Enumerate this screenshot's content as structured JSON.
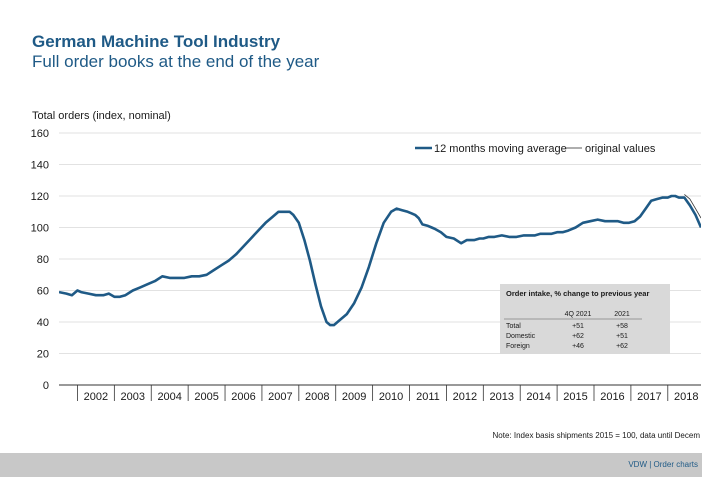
{
  "header": {
    "title": "German Machine Tool Industry",
    "subtitle": "Full order books at the end of the year"
  },
  "chart_data": {
    "type": "line",
    "ylabel": "Total orders (index, nominal)",
    "ylim": [
      0,
      160
    ],
    "yticks": [
      0,
      20,
      40,
      60,
      80,
      100,
      120,
      140,
      160
    ],
    "xlim": [
      2001.5,
      2018.9
    ],
    "xtick_labels": [
      "2002",
      "2003",
      "2004",
      "2005",
      "2006",
      "2007",
      "2008",
      "2009",
      "2010",
      "2011",
      "2012",
      "2013",
      "2014",
      "2015",
      "2016",
      "2017",
      "2018"
    ],
    "grid": true,
    "legend_position": "top-right",
    "series": [
      {
        "name": "12 months moving average",
        "color": "#1f5a86",
        "x": [
          2001.5,
          2001.7,
          2001.85,
          2002.0,
          2002.1,
          2002.3,
          2002.5,
          2002.7,
          2002.85,
          2003.0,
          2003.15,
          2003.3,
          2003.5,
          2003.7,
          2003.9,
          2004.1,
          2004.3,
          2004.5,
          2004.7,
          2004.9,
          2005.1,
          2005.3,
          2005.5,
          2005.7,
          2005.9,
          2006.1,
          2006.3,
          2006.5,
          2006.7,
          2006.9,
          2007.1,
          2007.3,
          2007.45,
          2007.6,
          2007.75,
          2007.85,
          2008.0,
          2008.15,
          2008.3,
          2008.45,
          2008.6,
          2008.75,
          2008.85,
          2008.95,
          2009.1,
          2009.3,
          2009.5,
          2009.7,
          2009.9,
          2010.1,
          2010.3,
          2010.5,
          2010.65,
          2010.8,
          2010.95,
          2011.05,
          2011.15,
          2011.25,
          2011.35,
          2011.5,
          2011.6,
          2011.7,
          2011.85,
          2012.0,
          2012.2,
          2012.4,
          2012.55,
          2012.75,
          2012.9,
          2013.0,
          2013.15,
          2013.3,
          2013.5,
          2013.7,
          2013.9,
          2014.1,
          2014.25,
          2014.4,
          2014.55,
          2014.7,
          2014.85,
          2015.0,
          2015.15,
          2015.3,
          2015.5,
          2015.7,
          2015.9,
          2016.1,
          2016.3,
          2016.5,
          2016.65,
          2016.8,
          2016.95,
          2017.1,
          2017.25,
          2017.4,
          2017.55,
          2017.7,
          2017.85,
          2018.0,
          2018.1,
          2018.2,
          2018.3,
          2018.45,
          2018.6,
          2018.75,
          2018.9
        ],
        "y": [
          59,
          58,
          57,
          60,
          59,
          58,
          57,
          57,
          58,
          56,
          56,
          57,
          60,
          62,
          64,
          66,
          69,
          68,
          68,
          68,
          69,
          69,
          70,
          73,
          76,
          79,
          83,
          88,
          93,
          98,
          103,
          107,
          110,
          110,
          110,
          108,
          103,
          92,
          79,
          64,
          50,
          40,
          38,
          38,
          41,
          45,
          52,
          62,
          75,
          90,
          103,
          110,
          112,
          111,
          110,
          109,
          108,
          106,
          102,
          101,
          100,
          99,
          97,
          94,
          93,
          90,
          92,
          92,
          93,
          93,
          94,
          94,
          95,
          94,
          94,
          95,
          95,
          95,
          96,
          96,
          96,
          97,
          97,
          98,
          100,
          103,
          104,
          105,
          104,
          104,
          104,
          103,
          103,
          104,
          107,
          112,
          117,
          118,
          119,
          119,
          120,
          120,
          119,
          119,
          114,
          108,
          100
        ]
      },
      {
        "name": "original values",
        "color": "#333333",
        "x": [
          2018.45,
          2018.6,
          2018.75,
          2018.9
        ],
        "y": [
          121,
          118,
          112,
          106
        ]
      }
    ],
    "inset_table": {
      "title": "Order intake, % change to previous year",
      "columns": [
        "",
        "4Q 2021",
        "2021"
      ],
      "rows": [
        [
          "Total",
          "+51",
          "+58"
        ],
        [
          "Domestic",
          "+62",
          "+51"
        ],
        [
          "Foreign",
          "+46",
          "+62"
        ]
      ]
    }
  },
  "note": "Note: Index basis shipments 2015 = 100, data until Decem",
  "footer": {
    "text": "VDW  |  Order charts",
    "background": "#c8c8c8"
  }
}
